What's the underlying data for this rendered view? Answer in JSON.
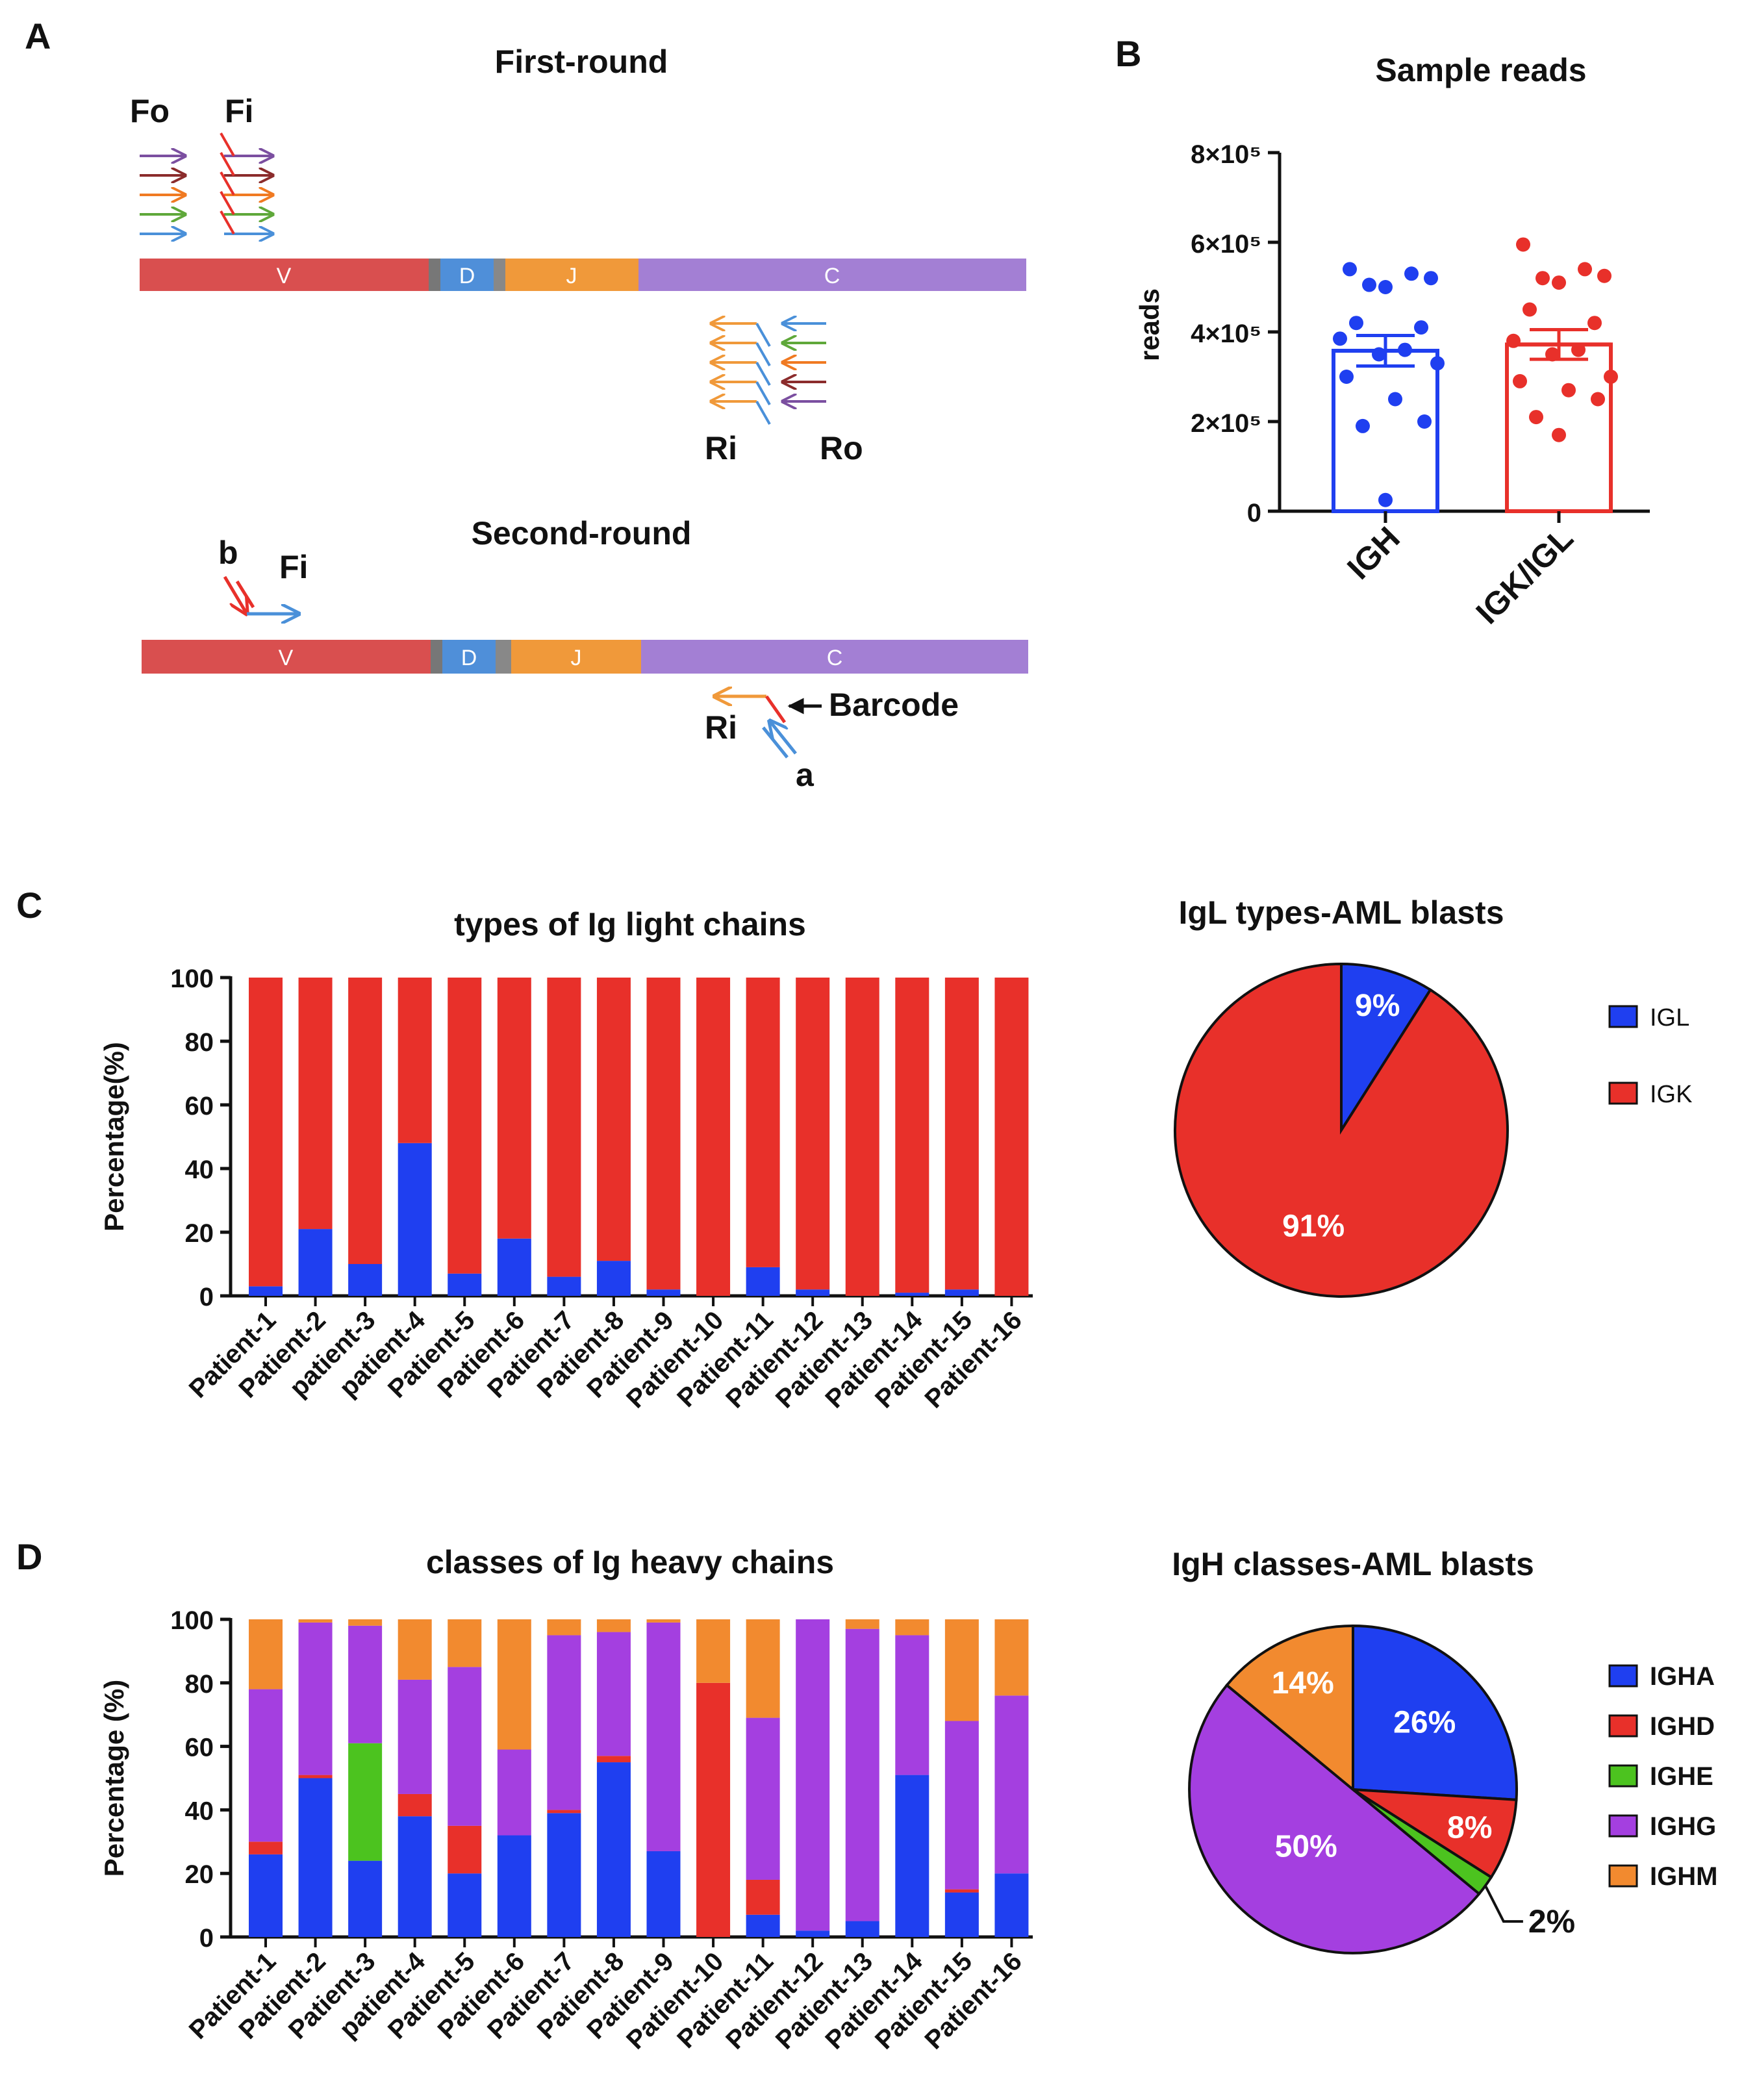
{
  "panels": {
    "a": {
      "letter": "A",
      "first_round_title": "First-round",
      "second_round_title": "Second-round",
      "segments": [
        "V",
        "D",
        "J",
        "C"
      ],
      "labels": {
        "fo": "Fo",
        "fi": "Fi",
        "ri": "Ri",
        "ro": "Ro",
        "b": "b",
        "fi2": "Fi",
        "barcode": "Barcode",
        "ri2": "Ri",
        "a": "a"
      },
      "colors": {
        "V": "#d94f4f",
        "D": "#4f8fd9",
        "J": "#f0993a",
        "C": "#a37fd4",
        "gap": "#777777",
        "primers": [
          "#7b4fa0",
          "#8b2c2c",
          "#f07a22",
          "#5fa83a",
          "#4a90d9"
        ]
      }
    },
    "b": {
      "letter": "B"
    },
    "c": {
      "letter": "C"
    },
    "d": {
      "letter": "D"
    }
  },
  "chart_data": [
    {
      "id": "sample-reads",
      "type": "bar",
      "title": "Sample reads",
      "ylabel": "reads",
      "ylim": [
        0,
        800000
      ],
      "ytick_labels": [
        "0",
        "2×10⁵",
        "4×10⁵",
        "6×10⁵",
        "8×10⁵"
      ],
      "ytick_values": [
        0,
        200000,
        400000,
        600000,
        800000
      ],
      "categories": [
        "IGH",
        "IGK/IGL"
      ],
      "means": [
        358000,
        372000
      ],
      "sem": [
        34000,
        33000
      ],
      "colors": [
        "#1f3ff0",
        "#e8302a"
      ],
      "points": [
        [
          540000,
          530000,
          520000,
          505000,
          500000,
          420000,
          410000,
          385000,
          360000,
          350000,
          330000,
          300000,
          250000,
          200000,
          190000,
          25000
        ],
        [
          595000,
          540000,
          525000,
          520000,
          510000,
          450000,
          420000,
          380000,
          360000,
          350000,
          300000,
          290000,
          270000,
          250000,
          210000,
          170000
        ]
      ]
    },
    {
      "id": "light-chain-types",
      "type": "bar",
      "stacked": true,
      "title": "types of Ig light chains",
      "ylabel": "Percentage(%)",
      "ylim": [
        0,
        100
      ],
      "ytick_labels": [
        "0",
        "20",
        "40",
        "60",
        "80",
        "100"
      ],
      "categories": [
        "Patient-1",
        "Patient-2",
        "patient-3",
        "patient-4",
        "Patient-5",
        "Patient-6",
        "Patient-7",
        "Patient-8",
        "Patient-9",
        "Patient-10",
        "Patient-11",
        "Patient-12",
        "Patient-13",
        "Patient-14",
        "Patient-15",
        "Patient-16"
      ],
      "series": [
        {
          "name": "IGL",
          "color": "#1f3ff0",
          "values": [
            3,
            21,
            10,
            48,
            7,
            18,
            6,
            11,
            2,
            0,
            9,
            2,
            0,
            1,
            2,
            0
          ]
        },
        {
          "name": "IGK",
          "color": "#e8302a",
          "values": [
            97,
            79,
            90,
            52,
            93,
            82,
            94,
            89,
            98,
            100,
            91,
            98,
            100,
            99,
            98,
            100
          ]
        }
      ]
    },
    {
      "id": "light-chain-pie",
      "type": "pie",
      "title": "IgL types-AML blasts",
      "slices": [
        {
          "name": "IGL",
          "value": 9,
          "label": "9%",
          "color": "#1f3ff0"
        },
        {
          "name": "IGK",
          "value": 91,
          "label": "91%",
          "color": "#e8302a"
        }
      ],
      "legend": [
        "IGL",
        "IGK"
      ]
    },
    {
      "id": "heavy-chain-classes",
      "type": "bar",
      "stacked": true,
      "title": "classes of Ig heavy chains",
      "ylabel": "Percentage (%)",
      "ylim": [
        0,
        100
      ],
      "ytick_labels": [
        "0",
        "20",
        "40",
        "60",
        "80",
        "100"
      ],
      "categories": [
        "Patient-1",
        "Patient-2",
        "Patient-3",
        "patient-4",
        "Patient-5",
        "Patient-6",
        "Patient-7",
        "Patient-8",
        "Patient-9",
        "Patient-10",
        "Patient-11",
        "Patient-12",
        "Patient-13",
        "Patient-14",
        "Patient-15",
        "Patient-16"
      ],
      "series": [
        {
          "name": "IGHA",
          "color": "#1f3ff0",
          "values": [
            26,
            50,
            24,
            38,
            20,
            32,
            39,
            55,
            27,
            0,
            7,
            2,
            5,
            51,
            14,
            20
          ]
        },
        {
          "name": "IGHD",
          "color": "#e8302a",
          "values": [
            4,
            1,
            0,
            7,
            15,
            0,
            1,
            2,
            0,
            80,
            11,
            0,
            0,
            0,
            1,
            0
          ]
        },
        {
          "name": "IGHE",
          "color": "#4cc31f",
          "values": [
            0,
            0,
            37,
            0,
            0,
            0,
            0,
            0,
            0,
            0,
            0,
            0,
            0,
            0,
            0,
            0
          ]
        },
        {
          "name": "IGHG",
          "color": "#a43fe0",
          "values": [
            48,
            48,
            37,
            36,
            50,
            27,
            55,
            39,
            72,
            0,
            51,
            98,
            92,
            44,
            53,
            56
          ]
        },
        {
          "name": "IGHM",
          "color": "#f28a2f",
          "values": [
            22,
            1,
            2,
            19,
            15,
            41,
            5,
            4,
            1,
            20,
            31,
            0,
            3,
            5,
            32,
            24
          ]
        }
      ]
    },
    {
      "id": "heavy-chain-pie",
      "type": "pie",
      "title": "IgH classes-AML blasts",
      "slices": [
        {
          "name": "IGHA",
          "value": 26,
          "label": "26%",
          "color": "#1f3ff0"
        },
        {
          "name": "IGHD",
          "value": 8,
          "label": "8%",
          "color": "#e8302a"
        },
        {
          "name": "IGHE",
          "value": 2,
          "label": "2%",
          "color": "#4cc31f"
        },
        {
          "name": "IGHG",
          "value": 50,
          "label": "50%",
          "color": "#a43fe0"
        },
        {
          "name": "IGHM",
          "value": 14,
          "label": "14%",
          "color": "#f28a2f"
        }
      ],
      "legend": [
        "IGHA",
        "IGHD",
        "IGHE",
        "IGHG",
        "IGHM"
      ]
    }
  ]
}
